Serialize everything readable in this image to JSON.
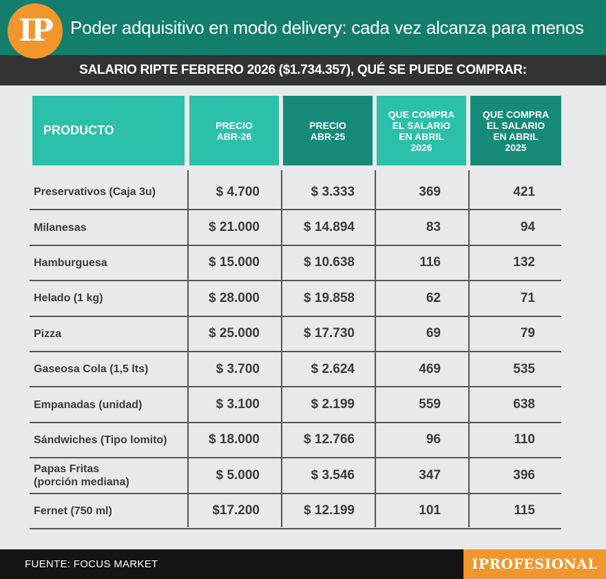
{
  "header": {
    "logo_text": "IP",
    "title": "Poder adquisitivo en modo delivery: cada vez alcanza para menos",
    "subtitle": "SALARIO RIPTE FEBRERO 2026 ($1.734.357), QUÉ SE PUEDE COMPRAR:"
  },
  "colors": {
    "top_bar": "#137e6c",
    "sub_bar": "#333333",
    "header_light": "#2bc0a9",
    "header_dark": "#158a78",
    "accent_orange": "#f1962d",
    "background": "#e8e9ea"
  },
  "chart_data": {
    "type": "table",
    "columns": [
      [
        "PRODUCTO"
      ],
      [
        "PRECIO",
        "ABR-26"
      ],
      [
        "PRECIO",
        "ABR-25"
      ],
      [
        "QUE COMPRA",
        "EL SALARIO",
        "EN ABRIL",
        "2026"
      ],
      [
        "QUE COMPRA",
        "EL SALARIO",
        "EN ABRIL",
        "2025"
      ]
    ],
    "rows": [
      {
        "product": [
          "Preservativos (Caja 3u)"
        ],
        "price_2026": "$ 4.700",
        "price_2025": "$ 3.333",
        "qty_2026": "369",
        "qty_2025": "421"
      },
      {
        "product": [
          "Milanesas"
        ],
        "price_2026": "$ 21.000",
        "price_2025": "$ 14.894",
        "qty_2026": "83",
        "qty_2025": "94"
      },
      {
        "product": [
          "Hamburguesa"
        ],
        "price_2026": "$ 15.000",
        "price_2025": "$ 10.638",
        "qty_2026": "116",
        "qty_2025": "132"
      },
      {
        "product": [
          "Helado (1 kg)"
        ],
        "price_2026": "$ 28.000",
        "price_2025": "$ 19.858",
        "qty_2026": "62",
        "qty_2025": "71"
      },
      {
        "product": [
          "Pizza"
        ],
        "price_2026": "$ 25.000",
        "price_2025": "$ 17.730",
        "qty_2026": "69",
        "qty_2025": "79"
      },
      {
        "product": [
          "Gaseosa Cola (1,5 lts)"
        ],
        "price_2026": "$ 3.700",
        "price_2025": "$ 2.624",
        "qty_2026": "469",
        "qty_2025": "535"
      },
      {
        "product": [
          "Empanadas (unidad)"
        ],
        "price_2026": "$ 3.100",
        "price_2025": "$ 2.199",
        "qty_2026": "559",
        "qty_2025": "638"
      },
      {
        "product": [
          "Sándwiches (Tipo lomito)"
        ],
        "price_2026": "$ 18.000",
        "price_2025": "$ 12.766",
        "qty_2026": "96",
        "qty_2025": "110"
      },
      {
        "product": [
          "Papas Fritas",
          "(porción mediana)"
        ],
        "price_2026": "$ 5.000",
        "price_2025": "$ 3.546",
        "qty_2026": "347",
        "qty_2025": "396"
      },
      {
        "product": [
          "Fernet (750 ml)"
        ],
        "price_2026": "$17.200",
        "price_2025": "$ 12.199",
        "qty_2026": "101",
        "qty_2025": "115"
      }
    ]
  },
  "footer": {
    "source": "FUENTE: FOCUS MARKET",
    "brand": "IPROFESIONAL"
  }
}
